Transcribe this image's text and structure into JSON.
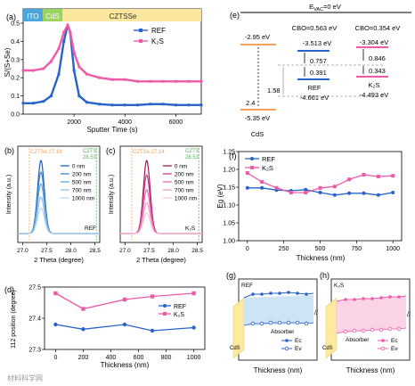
{
  "colors": {
    "ref": "#2763c8",
    "k2s": "#ee5aa8",
    "ito": "#4aa6dd",
    "cds": "#9ad35e",
    "cztsse": "#fbe69d",
    "orange": "#f5a15a",
    "green_dash": "#5bb15b",
    "dark_band": "#f0a060",
    "grey_dash": "#9a9a9a",
    "abs_ref_fill": "#cfe3f7",
    "abs_k2s_fill": "#fbd3e7",
    "cds_fill": "#fde9a0"
  },
  "chart_data": [
    {
      "id": "a",
      "type": "line",
      "panel_label": "(a)",
      "xlabel": "Sputter Time (s)",
      "ylabel": "S/(S+Se)",
      "xlim": [
        0,
        7000
      ],
      "ylim": [
        0.0,
        0.5
      ],
      "xticks": [
        2000,
        4000,
        6000
      ],
      "xticklabels": [
        "2000",
        "4000",
        "6000"
      ],
      "yticks": [
        0.0,
        0.1,
        0.2,
        0.3,
        0.4,
        0.5
      ],
      "yticklabels": [
        "0.0",
        "0.1",
        "0.2",
        "0.3",
        "0.4",
        "0.5"
      ],
      "regions": [
        {
          "label": "ITO",
          "x": [
            0,
            850
          ]
        },
        {
          "label": "CdS",
          "x": [
            850,
            1700
          ]
        },
        {
          "label": "CZTSSe",
          "x": [
            1700,
            7000
          ]
        }
      ],
      "legend": [
        "REF",
        "K₂S"
      ],
      "legend_position": "top-right",
      "series": [
        {
          "name": "REF",
          "x": [
            0,
            400,
            800,
            1100,
            1400,
            1600,
            1750,
            1850,
            2000,
            2200,
            2500,
            3000,
            3500,
            4000,
            4500,
            5000,
            5500,
            6000,
            6500,
            7000
          ],
          "values": [
            0.06,
            0.06,
            0.07,
            0.1,
            0.22,
            0.4,
            0.49,
            0.45,
            0.24,
            0.1,
            0.065,
            0.055,
            0.05,
            0.05,
            0.05,
            0.055,
            0.055,
            0.05,
            0.05,
            0.05
          ]
        },
        {
          "name": "K₂S",
          "x": [
            0,
            400,
            800,
            1100,
            1400,
            1600,
            1750,
            1850,
            2000,
            2200,
            2500,
            3000,
            3500,
            4000,
            4500,
            5000,
            5500,
            6000,
            6500,
            7000
          ],
          "values": [
            0.24,
            0.24,
            0.25,
            0.29,
            0.36,
            0.45,
            0.49,
            0.45,
            0.34,
            0.26,
            0.22,
            0.2,
            0.19,
            0.19,
            0.18,
            0.18,
            0.18,
            0.18,
            0.18,
            0.18
          ]
        }
      ]
    },
    {
      "id": "b",
      "type": "line",
      "panel_label": "(b)",
      "xlabel": "2 Theta (degree)",
      "ylabel": "Intensity (a.u.)",
      "xlim": [
        26.9,
        28.6
      ],
      "xticks": [
        27.0,
        27.5,
        28.0,
        28.5
      ],
      "xticklabels": [
        "27.0",
        "27.5",
        "28.0",
        "28.5"
      ],
      "annotations": [
        "CZTSe 27.14",
        "CZTS 28.53",
        "REF"
      ],
      "ref_lines": [
        27.14,
        28.53
      ],
      "peak_center": 27.38,
      "legend": [
        "0 nm",
        "200 nm",
        "500 nm",
        "700 nm",
        "1000 nm"
      ],
      "series": [
        {
          "name": "0 nm",
          "peak": 1.0,
          "color": "#1f5fb0"
        },
        {
          "name": "200 nm",
          "peak": 0.84,
          "color": "#3f86cf"
        },
        {
          "name": "500 nm",
          "peak": 0.68,
          "color": "#62a5de"
        },
        {
          "name": "700 nm",
          "peak": 0.5,
          "color": "#8fc0e8"
        },
        {
          "name": "1000 nm",
          "peak": 0.35,
          "color": "#b9d8f1"
        }
      ]
    },
    {
      "id": "c",
      "type": "line",
      "panel_label": "(c)",
      "xlabel": "2 Theta (degree)",
      "ylabel": "Intensity (a.u.)",
      "xlim": [
        26.9,
        28.6
      ],
      "xticks": [
        27.0,
        27.5,
        28.0,
        28.5
      ],
      "xticklabels": [
        "27.0",
        "27.5",
        "28.0",
        "28.5"
      ],
      "annotations": [
        "CZTSe 27.14",
        "CZTS 28.53",
        "K₂S"
      ],
      "ref_lines": [
        27.14,
        28.53
      ],
      "peak_center": 27.45,
      "legend": [
        "0 nm",
        "200 nm",
        "500 nm",
        "700 nm",
        "1000 nm"
      ],
      "series": [
        {
          "name": "0 nm",
          "peak": 1.0,
          "color": "#a0155c"
        },
        {
          "name": "200 nm",
          "peak": 0.8,
          "color": "#d3378a"
        },
        {
          "name": "500 nm",
          "peak": 0.6,
          "color": "#e868a8"
        },
        {
          "name": "700 nm",
          "peak": 0.42,
          "color": "#f19bc6"
        },
        {
          "name": "1000 nm",
          "peak": 0.28,
          "color": "#f8c6de"
        }
      ]
    },
    {
      "id": "d",
      "type": "line",
      "panel_label": "(d)",
      "xlabel": "Thickness (nm)",
      "ylabel": "112 position (degree)",
      "xlim": [
        -80,
        1080
      ],
      "ylim": [
        27.3,
        27.5
      ],
      "xticks": [
        0,
        200,
        400,
        600,
        800,
        1000
      ],
      "xticklabels": [
        "0",
        "200",
        "400",
        "600",
        "800",
        "1000"
      ],
      "yticks": [
        27.3,
        27.4,
        27.5
      ],
      "yticklabels": [
        "27.3",
        "27.4",
        "27.5"
      ],
      "legend": [
        "REF",
        "K₂S"
      ],
      "legend_position": "right",
      "series": [
        {
          "name": "REF",
          "x": [
            0,
            200,
            500,
            700,
            1000
          ],
          "values": [
            27.38,
            27.365,
            27.38,
            27.36,
            27.37
          ]
        },
        {
          "name": "K₂S",
          "x": [
            0,
            200,
            500,
            700,
            1000
          ],
          "values": [
            27.48,
            27.43,
            27.46,
            27.47,
            27.48
          ]
        }
      ]
    },
    {
      "id": "f",
      "type": "line",
      "panel_label": "(f)",
      "xlabel": "Thickness (nm)",
      "ylabel": "Eg (eV)",
      "xlim": [
        -60,
        1060
      ],
      "ylim": [
        1.0,
        1.25
      ],
      "xticks": [
        0,
        250,
        500,
        750,
        1000
      ],
      "xticklabels": [
        "0",
        "250",
        "500",
        "750",
        "1000"
      ],
      "yticks": [
        1.0,
        1.05,
        1.1,
        1.15,
        1.2,
        1.25
      ],
      "yticklabels": [
        "1.00",
        "1.05",
        "1.10",
        "1.15",
        "1.20",
        "1.25"
      ],
      "legend": [
        "REF",
        "K₂S"
      ],
      "legend_position": "top-left",
      "series": [
        {
          "name": "REF",
          "x": [
            0,
            100,
            200,
            300,
            400,
            500,
            600,
            700,
            800,
            900,
            1000
          ],
          "values": [
            1.148,
            1.148,
            1.142,
            1.14,
            1.143,
            1.135,
            1.128,
            1.133,
            1.133,
            1.128,
            1.135
          ]
        },
        {
          "name": "K₂S",
          "x": [
            0,
            100,
            200,
            300,
            400,
            500,
            600,
            700,
            800,
            900,
            1000
          ],
          "values": [
            1.19,
            1.165,
            1.148,
            1.135,
            1.135,
            1.148,
            1.152,
            1.172,
            1.185,
            1.18,
            1.182
          ]
        }
      ]
    }
  ],
  "band_diagram": {
    "panel_label": "(e)",
    "vac": "E",
    "vac_sub": "VAC",
    "vac_rest": "=0 eV",
    "cds_label": "CdS",
    "cds_top": "-2.95 eV",
    "cds_bottom": "-5.35 eV",
    "cds_gap": "2.4",
    "gap_label": "1.58",
    "ref_cbo": "CBO=0.563 eV",
    "ref_top": "-3.513 eV",
    "ref_gap1": "0.757",
    "ref_gap2": "0.391",
    "ref_name": "REF",
    "ref_bottom": "-4.661 eV",
    "k2s_cbo": "CBO=0.354 eV",
    "k2s_top": "-3.304 eV",
    "k2s_gap1": "0.846",
    "k2s_gap2": "0.343",
    "k2s_name": "K₂S",
    "k2s_bottom": "-4.493 eV"
  },
  "band_g": {
    "panel_label": "(g)",
    "tag": "REF",
    "absorber": "Absorber",
    "cds": "CdS",
    "xlabel": "Thickness (nm)",
    "legend": [
      "Ec",
      "Ev"
    ]
  },
  "band_h": {
    "panel_label": "(h)",
    "tag": "K₂S",
    "absorber": "Absorber",
    "cds": "CdS",
    "xlabel": "Thickness (nm)",
    "legend": [
      "Ec",
      "Ev"
    ]
  },
  "watermark": "材料科学网"
}
